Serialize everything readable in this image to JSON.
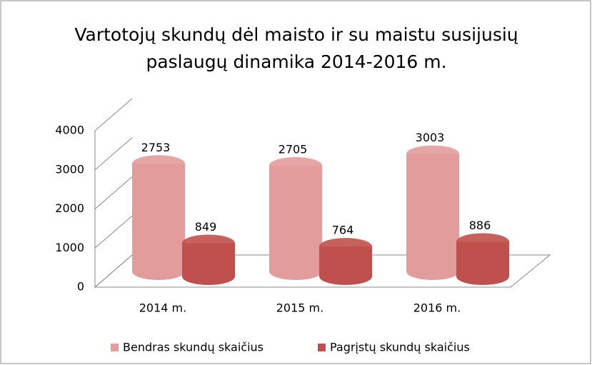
{
  "chart_data": {
    "type": "bar3d",
    "title": "Vartotojų skundų dėl maisto ir su maistu susijusių paslaugų dinamika 2014-2016 m.",
    "categories": [
      "2014 m.",
      "2015 m.",
      "2016 m."
    ],
    "series": [
      {
        "name": "Bendras skundų skaičius",
        "color": "#e39c9c",
        "values": [
          2753,
          2705,
          3003
        ]
      },
      {
        "name": "Pagrįstų skundų skaičius",
        "color": "#c0504d",
        "values": [
          849,
          764,
          886
        ]
      }
    ],
    "ylim": [
      0,
      4000
    ],
    "yticks": [
      0,
      1000,
      2000,
      3000,
      4000
    ],
    "grid": true,
    "legend": "bottom"
  }
}
